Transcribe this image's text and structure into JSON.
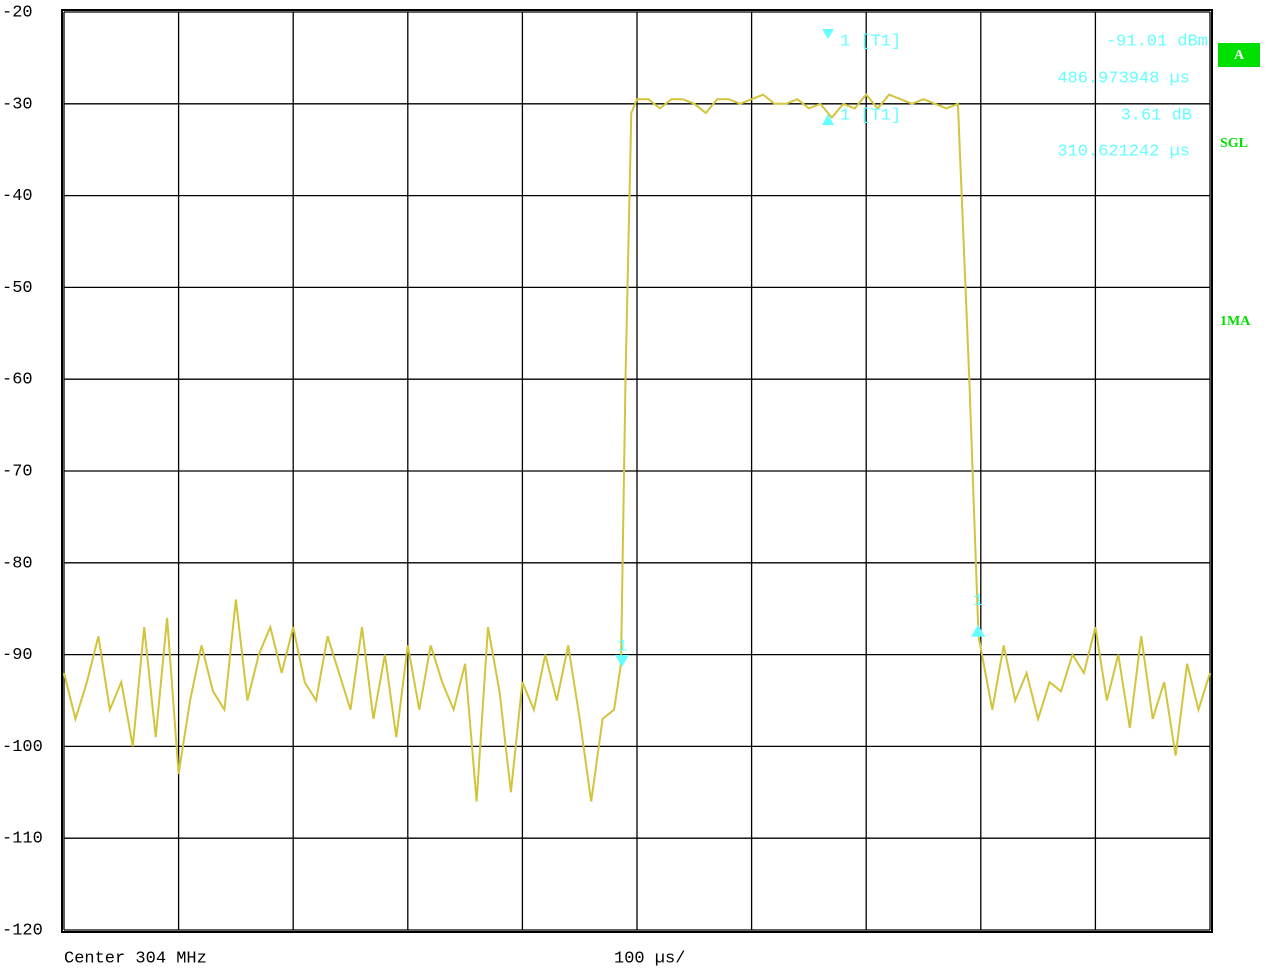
{
  "chart_data": {
    "type": "line",
    "color": "#d2c43c",
    "marker_color": "#66ffff",
    "status_color": "#00e000",
    "x": [
      0,
      10,
      20,
      30,
      40,
      50,
      60,
      70,
      80,
      90,
      100,
      110,
      120,
      130,
      140,
      150,
      160,
      170,
      180,
      190,
      200,
      210,
      220,
      230,
      240,
      250,
      260,
      270,
      280,
      290,
      300,
      310,
      320,
      330,
      340,
      350,
      360,
      370,
      380,
      390,
      400,
      410,
      420,
      430,
      440,
      450,
      460,
      470,
      480,
      486,
      490,
      495,
      500,
      510,
      520,
      530,
      540,
      550,
      560,
      570,
      580,
      590,
      600,
      610,
      620,
      630,
      640,
      650,
      660,
      670,
      680,
      690,
      700,
      710,
      720,
      730,
      740,
      750,
      760,
      770,
      780,
      790,
      798,
      810,
      820,
      830,
      840,
      850,
      860,
      870,
      880,
      890,
      900,
      910,
      920,
      930,
      940,
      950,
      960,
      970,
      980,
      990,
      1000
    ],
    "values": [
      -92,
      -97,
      -93,
      -88,
      -96,
      -93,
      -100,
      -87,
      -99,
      -86,
      -103,
      -95,
      -89,
      -94,
      -96,
      -84,
      -95,
      -90,
      -87,
      -92,
      -87,
      -93,
      -95,
      -88,
      -92,
      -96,
      -87,
      -97,
      -90,
      -99,
      -89,
      -96,
      -89,
      -93,
      -96,
      -91,
      -106,
      -87,
      -94,
      -105,
      -93,
      -96,
      -90,
      -95,
      -89,
      -97,
      -106,
      -97,
      -96,
      -91,
      -60,
      -31,
      -29.5,
      -29.5,
      -30.5,
      -29.5,
      -29.5,
      -30,
      -31,
      -29.5,
      -29.5,
      -30,
      -29.5,
      -29,
      -30,
      -30,
      -29.5,
      -30.5,
      -30,
      -31.5,
      -30,
      -30.5,
      -29,
      -30.5,
      -29,
      -29.5,
      -30,
      -29.5,
      -30,
      -30.5,
      -30,
      -60,
      -88,
      -96,
      -89,
      -95,
      -92,
      -97,
      -93,
      -94,
      -90,
      -92,
      -87,
      -95,
      -90,
      -98,
      -88,
      -97,
      -93,
      -101,
      -91,
      -96,
      -92
    ],
    "xlim": [
      0,
      1000
    ],
    "xticks": [
      0,
      100,
      200,
      300,
      400,
      500,
      600,
      700,
      800,
      900,
      1000
    ],
    "ylim": [
      -120,
      -20
    ],
    "yticks": [
      -20,
      -30,
      -40,
      -50,
      -60,
      -70,
      -80,
      -90,
      -100,
      -110,
      -120
    ],
    "grid": true,
    "markers": [
      {
        "label": "1",
        "marker_name": "1 [T1]",
        "x": 486.973948,
        "y": -91.01,
        "y_label": "-91.01 dBm",
        "x_label": "486.973948 µs"
      },
      {
        "label": "1",
        "marker_name": "1 [T1]",
        "dx": 310.621242,
        "dy": 3.61,
        "dy_label": "3.61 dB",
        "dx_label": "310.621242 µs"
      }
    ],
    "status": {
      "trace_mode": "A",
      "sweep": "SGL",
      "trace": "1MA"
    },
    "footer": {
      "center": "Center 304 MHz",
      "span": "100 µs/"
    }
  }
}
